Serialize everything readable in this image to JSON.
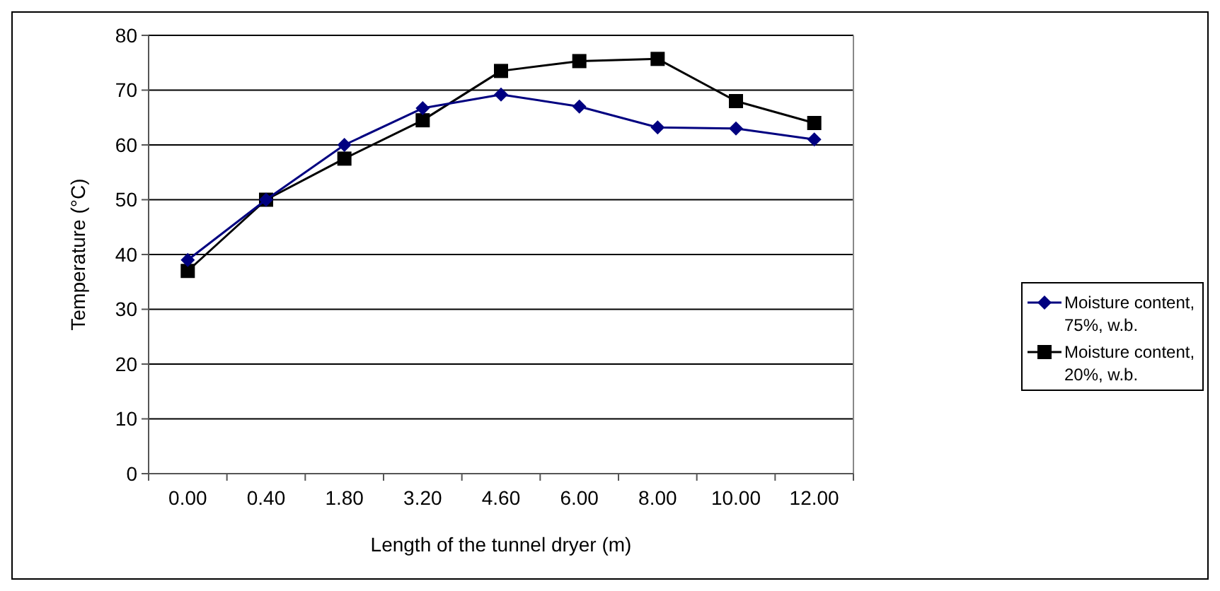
{
  "chart_data": {
    "type": "line",
    "xlabel": "Length of the tunnel dryer (m)",
    "ylabel": "Temperature (°C)",
    "categories": [
      "0.00",
      "0.40",
      "1.80",
      "3.20",
      "4.60",
      "6.00",
      "8.00",
      "10.00",
      "12.00"
    ],
    "series": [
      {
        "name": "Moisture content, 75%, w.b.",
        "color": "#000080",
        "marker": "diamond",
        "values": [
          39,
          50,
          60,
          66.7,
          69.2,
          67,
          63.2,
          63,
          61
        ]
      },
      {
        "name": "Moisture content, 20%, w.b.",
        "color": "#000000",
        "marker": "square",
        "values": [
          37,
          50,
          57.5,
          64.5,
          73.5,
          75.3,
          75.7,
          68,
          64
        ]
      }
    ],
    "ylim": [
      0,
      80
    ],
    "yticks": [
      0,
      10,
      20,
      30,
      40,
      50,
      60,
      70,
      80
    ],
    "grid": "y",
    "legend": "right"
  }
}
